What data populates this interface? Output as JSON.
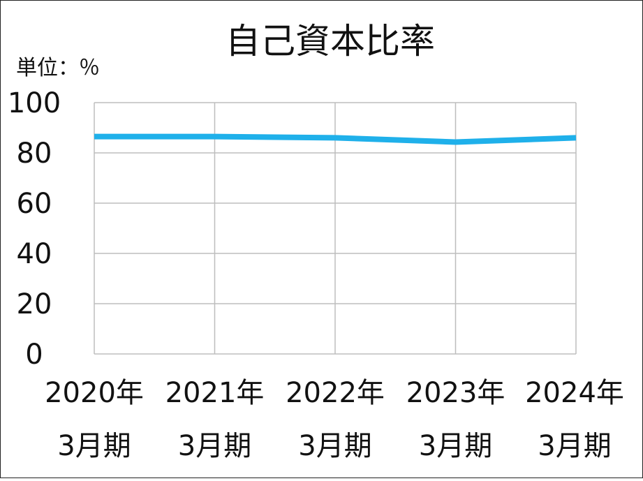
{
  "chart_data": {
    "type": "line",
    "title": "自己資本比率",
    "unit_label": "単位：％",
    "categories": [
      [
        "2020年",
        "3月期"
      ],
      [
        "2021年",
        "3月期"
      ],
      [
        "2022年",
        "3月期"
      ],
      [
        "2023年",
        "3月期"
      ],
      [
        "2024年",
        "3月期"
      ]
    ],
    "series": [
      {
        "color": "#1fb0ea",
        "values": [
          86.5,
          86.5,
          86.0,
          84.3,
          86.0
        ]
      }
    ],
    "ylim": [
      0,
      100
    ],
    "yticks": [
      "0",
      "20",
      "40",
      "60",
      "80",
      "100"
    ],
    "grid": true
  }
}
